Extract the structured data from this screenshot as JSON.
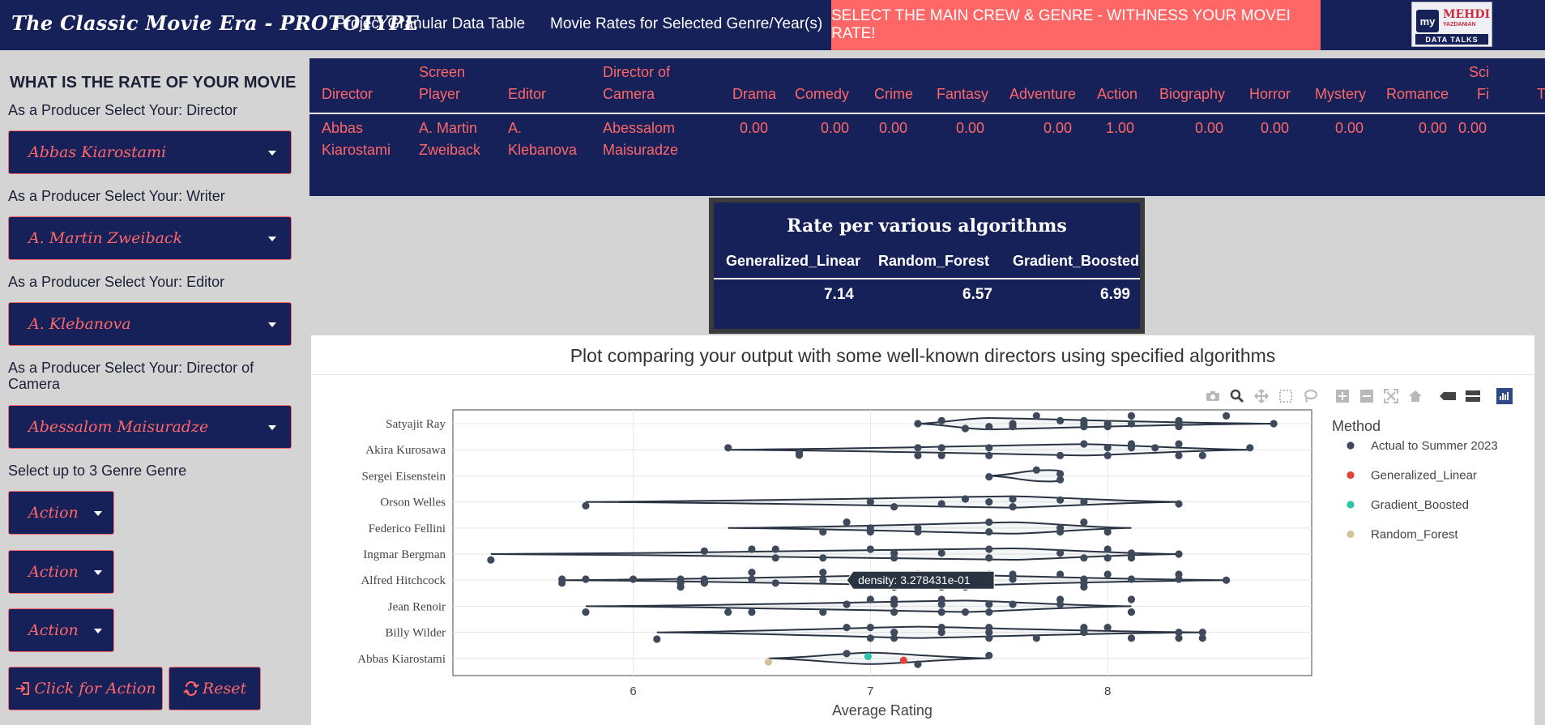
{
  "navbar": {
    "brand": "The Classic Movie Era - PROTOTYPE",
    "links": [
      "Project Granular Data Table",
      "Movie Rates for Selected Genre/Year(s)"
    ],
    "highlight": "SELECT THE MAIN CREW & GENRE - WITHNESS YOUR MOVEI RATE!",
    "logo": {
      "mark": "my",
      "name1": "MEHDI",
      "name2": "YAZDANIAN",
      "sub": "DATA TALKS"
    }
  },
  "sidebar": {
    "title": "WHAT IS THE RATE OF YOUR MOVIE",
    "director_label": "As a Producer Select Your: Director",
    "director_value": "Abbas Kiarostami",
    "writer_label": "As a Producer Select Your: Writer",
    "writer_value": "A. Martin Zweiback",
    "editor_label": "As a Producer Select Your: Editor",
    "editor_value": "A. Klebanova",
    "camera_label_1": "As a Producer Select Your: Director of",
    "camera_label_2": "Camera",
    "camera_value": "Abessalom Maisuradze",
    "genre_label": "Select up to 3 Genre Genre",
    "genres": [
      "Action",
      "Action",
      "Action"
    ],
    "action_button": "Click for Action",
    "reset_button": "Reset"
  },
  "crew_table": {
    "headers": {
      "director": "Director",
      "screen_1": "Screen",
      "screen_2": "Player",
      "editor": "Editor",
      "camera_1": "Director of",
      "camera_2": "Camera",
      "drama": "Drama",
      "comedy": "Comedy",
      "crime": "Crime",
      "fantasy": "Fantasy",
      "adventure": "Adventure",
      "action": "Action",
      "biography": "Biography",
      "horror": "Horror",
      "mystery": "Mystery",
      "romance": "Romance",
      "scifi_1": "Sci",
      "scifi_2": "Fi",
      "cut": "T"
    },
    "row": {
      "director_1": "Abbas",
      "director_2": "Kiarostami",
      "screen_1": "A. Martin",
      "screen_2": "Zweiback",
      "editor_1": "A.",
      "editor_2": "Klebanova",
      "camera_1": "Abessalom",
      "camera_2": "Maisuradze",
      "drama": "0.00",
      "comedy": "0.00",
      "crime": "0.00",
      "fantasy": "0.00",
      "adventure": "0.00",
      "action": "1.00",
      "biography": "0.00",
      "horror": "0.00",
      "mystery": "0.00",
      "romance": "0.00",
      "scifi": "0.00"
    }
  },
  "rate_table": {
    "title": "Rate per various algorithms",
    "headers": [
      "Generalized_Linear",
      "Random_Forest",
      "Gradient_Boosted"
    ],
    "values": [
      "7.14",
      "6.57",
      "6.99"
    ]
  },
  "chart_data": {
    "type": "scatter",
    "title": "Plot comparing your output with some well-known directors using specified algorithms",
    "xlabel": "Average Rating",
    "ylabel": "",
    "xlim": [
      5.24,
      8.86
    ],
    "x_ticks": [
      "6",
      "7",
      "8"
    ],
    "categories": [
      "Satyajit Ray",
      "Akira Kurosawa",
      "Sergei Eisenstein",
      "Orson Welles",
      "Federico Fellini",
      "Ingmar Bergman",
      "Alfred Hitchcock",
      "Jean Renoir",
      "Billy Wilder",
      "Abbas Kiarostami"
    ],
    "legend_title": "Method",
    "legend_position": "right",
    "series": [
      {
        "name": "Actual to Summer 2023",
        "color": "#3e4a5c",
        "points": [
          [
            "Satyajit Ray",
            7.7,
            0.4
          ],
          [
            "Satyajit Ray",
            8.1,
            0.4
          ],
          [
            "Satyajit Ray",
            8.5,
            0.4
          ],
          [
            "Satyajit Ray",
            7.3,
            0.15
          ],
          [
            "Satyajit Ray",
            7.8,
            0.15
          ],
          [
            "Satyajit Ray",
            7.9,
            0.15
          ],
          [
            "Satyajit Ray",
            8.3,
            0.15
          ],
          [
            "Satyajit Ray",
            8.7,
            0.0
          ],
          [
            "Satyajit Ray",
            7.2,
            0.0
          ],
          [
            "Satyajit Ray",
            7.6,
            0.0
          ],
          [
            "Satyajit Ray",
            7.9,
            0.0
          ],
          [
            "Satyajit Ray",
            8.0,
            0.0
          ],
          [
            "Satyajit Ray",
            8.1,
            0.0
          ],
          [
            "Satyajit Ray",
            8.3,
            0.0
          ],
          [
            "Satyajit Ray",
            7.5,
            -0.15
          ],
          [
            "Satyajit Ray",
            7.6,
            -0.15
          ],
          [
            "Satyajit Ray",
            7.9,
            -0.15
          ],
          [
            "Satyajit Ray",
            8.0,
            -0.15
          ],
          [
            "Satyajit Ray",
            8.3,
            -0.15
          ],
          [
            "Satyajit Ray",
            7.4,
            -0.25
          ],
          [
            "Akira Kurosawa",
            7.9,
            0.3
          ],
          [
            "Akira Kurosawa",
            8.1,
            0.3
          ],
          [
            "Akira Kurosawa",
            8.3,
            0.3
          ],
          [
            "Akira Kurosawa",
            6.4,
            0.1
          ],
          [
            "Akira Kurosawa",
            7.2,
            0.1
          ],
          [
            "Akira Kurosawa",
            7.3,
            0.1
          ],
          [
            "Akira Kurosawa",
            7.5,
            0.1
          ],
          [
            "Akira Kurosawa",
            8.0,
            0.1
          ],
          [
            "Akira Kurosawa",
            8.1,
            0.1
          ],
          [
            "Akira Kurosawa",
            8.2,
            0.1
          ],
          [
            "Akira Kurosawa",
            8.6,
            0.1
          ],
          [
            "Akira Kurosawa",
            6.7,
            -0.15
          ],
          [
            "Akira Kurosawa",
            6.7,
            -0.28
          ],
          [
            "Akira Kurosawa",
            7.2,
            -0.3
          ],
          [
            "Akira Kurosawa",
            7.3,
            -0.3
          ],
          [
            "Akira Kurosawa",
            7.5,
            -0.3
          ],
          [
            "Akira Kurosawa",
            7.8,
            -0.3
          ],
          [
            "Akira Kurosawa",
            8.0,
            -0.3
          ],
          [
            "Akira Kurosawa",
            8.3,
            -0.3
          ],
          [
            "Akira Kurosawa",
            8.4,
            -0.3
          ],
          [
            "Sergei Eisenstein",
            7.7,
            0.3
          ],
          [
            "Sergei Eisenstein",
            7.8,
            0.1
          ],
          [
            "Sergei Eisenstein",
            7.5,
            -0.05
          ],
          [
            "Sergei Eisenstein",
            7.8,
            -0.2
          ],
          [
            "Orson Welles",
            7.4,
            0.15
          ],
          [
            "Orson Welles",
            7.6,
            0.15
          ],
          [
            "Orson Welles",
            7.8,
            0.1
          ],
          [
            "Orson Welles",
            7.0,
            0.0
          ],
          [
            "Orson Welles",
            7.5,
            0.0
          ],
          [
            "Orson Welles",
            7.9,
            0.0
          ],
          [
            "Orson Welles",
            7.3,
            -0.1
          ],
          [
            "Orson Welles",
            7.6,
            -0.25
          ],
          [
            "Orson Welles",
            8.3,
            -0.1
          ],
          [
            "Orson Welles",
            5.8,
            -0.2
          ],
          [
            "Orson Welles",
            7.1,
            -0.25
          ],
          [
            "Federico Fellini",
            6.9,
            0.3
          ],
          [
            "Federico Fellini",
            7.5,
            0.3
          ],
          [
            "Federico Fellini",
            7.9,
            0.3
          ],
          [
            "Federico Fellini",
            7.0,
            0.0
          ],
          [
            "Federico Fellini",
            7.2,
            0.0
          ],
          [
            "Federico Fellini",
            7.8,
            0.0
          ],
          [
            "Federico Fellini",
            6.8,
            -0.2
          ],
          [
            "Federico Fellini",
            7.0,
            -0.2
          ],
          [
            "Federico Fellini",
            7.2,
            -0.2
          ],
          [
            "Federico Fellini",
            7.5,
            -0.2
          ],
          [
            "Federico Fellini",
            7.8,
            -0.2
          ],
          [
            "Federico Fellini",
            8.0,
            -0.2
          ],
          [
            "Ingmar Bergman",
            6.5,
            0.25
          ],
          [
            "Ingmar Bergman",
            6.6,
            0.25
          ],
          [
            "Ingmar Bergman",
            7.0,
            0.25
          ],
          [
            "Ingmar Bergman",
            7.5,
            0.25
          ],
          [
            "Ingmar Bergman",
            8.0,
            0.25
          ],
          [
            "Ingmar Bergman",
            6.3,
            0.15
          ],
          [
            "Ingmar Bergman",
            7.1,
            0.05
          ],
          [
            "Ingmar Bergman",
            7.3,
            0.05
          ],
          [
            "Ingmar Bergman",
            7.8,
            0.05
          ],
          [
            "Ingmar Bergman",
            8.1,
            0.05
          ],
          [
            "Ingmar Bergman",
            8.3,
            0.0
          ],
          [
            "Ingmar Bergman",
            5.4,
            -0.3
          ],
          [
            "Ingmar Bergman",
            6.6,
            -0.2
          ],
          [
            "Ingmar Bergman",
            6.8,
            -0.2
          ],
          [
            "Ingmar Bergman",
            7.1,
            -0.2
          ],
          [
            "Ingmar Bergman",
            7.5,
            -0.2
          ],
          [
            "Ingmar Bergman",
            7.9,
            -0.2
          ],
          [
            "Ingmar Bergman",
            8.0,
            -0.2
          ],
          [
            "Ingmar Bergman",
            8.1,
            -0.2
          ],
          [
            "Alfred Hitchcock",
            6.5,
            0.4
          ],
          [
            "Alfred Hitchcock",
            6.8,
            0.4
          ],
          [
            "Alfred Hitchcock",
            7.2,
            0.3
          ],
          [
            "Alfred Hitchcock",
            7.5,
            0.3
          ],
          [
            "Alfred Hitchcock",
            7.6,
            0.3
          ],
          [
            "Alfred Hitchcock",
            7.8,
            0.3
          ],
          [
            "Alfred Hitchcock",
            8.0,
            0.3
          ],
          [
            "Alfred Hitchcock",
            8.3,
            0.3
          ],
          [
            "Alfred Hitchcock",
            5.7,
            0.05
          ],
          [
            "Alfred Hitchcock",
            5.8,
            0.05
          ],
          [
            "Alfred Hitchcock",
            6.0,
            0.05
          ],
          [
            "Alfred Hitchcock",
            6.2,
            0.05
          ],
          [
            "Alfred Hitchcock",
            6.3,
            0.05
          ],
          [
            "Alfred Hitchcock",
            6.5,
            0.05
          ],
          [
            "Alfred Hitchcock",
            6.8,
            0.0
          ],
          [
            "Alfred Hitchcock",
            7.5,
            0.05
          ],
          [
            "Alfred Hitchcock",
            7.6,
            0.05
          ],
          [
            "Alfred Hitchcock",
            7.9,
            0.05
          ],
          [
            "Alfred Hitchcock",
            8.1,
            0.05
          ],
          [
            "Alfred Hitchcock",
            8.3,
            0.05
          ],
          [
            "Alfred Hitchcock",
            8.5,
            0.0
          ],
          [
            "Alfred Hitchcock",
            5.7,
            -0.15
          ],
          [
            "Alfred Hitchcock",
            6.2,
            -0.15
          ],
          [
            "Alfred Hitchcock",
            6.3,
            -0.15
          ],
          [
            "Alfred Hitchcock",
            6.6,
            -0.15
          ],
          [
            "Alfred Hitchcock",
            7.5,
            -0.15
          ],
          [
            "Alfred Hitchcock",
            7.9,
            -0.15
          ],
          [
            "Alfred Hitchcock",
            6.2,
            -0.35
          ],
          [
            "Alfred Hitchcock",
            7.1,
            -0.35
          ],
          [
            "Alfred Hitchcock",
            7.3,
            -0.35
          ],
          [
            "Alfred Hitchcock",
            7.4,
            -0.35
          ],
          [
            "Alfred Hitchcock",
            7.9,
            -0.35
          ],
          [
            "Jean Renoir",
            7.0,
            0.35
          ],
          [
            "Jean Renoir",
            7.1,
            0.35
          ],
          [
            "Jean Renoir",
            7.3,
            0.35
          ],
          [
            "Jean Renoir",
            7.8,
            0.35
          ],
          [
            "Jean Renoir",
            8.1,
            0.35
          ],
          [
            "Jean Renoir",
            6.9,
            0.1
          ],
          [
            "Jean Renoir",
            7.1,
            0.1
          ],
          [
            "Jean Renoir",
            7.3,
            0.1
          ],
          [
            "Jean Renoir",
            7.5,
            0.1
          ],
          [
            "Jean Renoir",
            7.6,
            0.1
          ],
          [
            "Jean Renoir",
            7.8,
            0.1
          ],
          [
            "Jean Renoir",
            5.8,
            -0.3
          ],
          [
            "Jean Renoir",
            6.4,
            -0.3
          ],
          [
            "Jean Renoir",
            6.5,
            -0.3
          ],
          [
            "Jean Renoir",
            6.8,
            -0.3
          ],
          [
            "Jean Renoir",
            7.1,
            -0.3
          ],
          [
            "Jean Renoir",
            7.3,
            -0.3
          ],
          [
            "Jean Renoir",
            7.4,
            -0.3
          ],
          [
            "Jean Renoir",
            7.5,
            -0.3
          ],
          [
            "Jean Renoir",
            8.1,
            -0.3
          ],
          [
            "Billy Wilder",
            6.9,
            0.25
          ],
          [
            "Billy Wilder",
            7.0,
            0.25
          ],
          [
            "Billy Wilder",
            7.3,
            0.25
          ],
          [
            "Billy Wilder",
            7.5,
            0.25
          ],
          [
            "Billy Wilder",
            7.9,
            0.25
          ],
          [
            "Billy Wilder",
            8.0,
            0.25
          ],
          [
            "Billy Wilder",
            7.1,
            0.0
          ],
          [
            "Billy Wilder",
            7.3,
            0.0
          ],
          [
            "Billy Wilder",
            7.5,
            0.0
          ],
          [
            "Billy Wilder",
            7.9,
            0.0
          ],
          [
            "Billy Wilder",
            8.3,
            0.0
          ],
          [
            "Billy Wilder",
            8.4,
            0.0
          ],
          [
            "Billy Wilder",
            6.1,
            -0.35
          ],
          [
            "Billy Wilder",
            7.0,
            -0.3
          ],
          [
            "Billy Wilder",
            7.1,
            -0.3
          ],
          [
            "Billy Wilder",
            7.5,
            -0.3
          ],
          [
            "Billy Wilder",
            7.7,
            -0.3
          ],
          [
            "Billy Wilder",
            8.1,
            -0.3
          ],
          [
            "Billy Wilder",
            8.3,
            -0.3
          ],
          [
            "Billy Wilder",
            8.4,
            -0.3
          ],
          [
            "Abbas Kiarostami",
            6.9,
            0.25
          ],
          [
            "Abbas Kiarostami",
            7.5,
            0.15
          ],
          [
            "Abbas Kiarostami",
            7.2,
            -0.3
          ]
        ]
      },
      {
        "name": "Generalized_Linear",
        "color": "#e4433d",
        "points": [
          [
            "Abbas Kiarostami",
            7.14,
            -0.1
          ]
        ]
      },
      {
        "name": "Gradient_Boosted",
        "color": "#2ec4aa",
        "points": [
          [
            "Abbas Kiarostami",
            6.99,
            0.1
          ]
        ]
      },
      {
        "name": "Random_Forest",
        "color": "#d4c49e",
        "points": [
          [
            "Abbas Kiarostami",
            6.57,
            -0.18
          ]
        ]
      }
    ],
    "violins": [
      {
        "category": "Satyajit Ray",
        "range": [
          7.2,
          8.7
        ],
        "peak": 7.5
      },
      {
        "category": "Akira Kurosawa",
        "range": [
          6.4,
          8.6
        ],
        "peak": 7.9
      },
      {
        "category": "Sergei Eisenstein",
        "range": [
          7.5,
          7.8
        ],
        "peak": 7.75
      },
      {
        "category": "Orson Welles",
        "range": [
          5.8,
          8.3
        ],
        "peak": 7.6
      },
      {
        "category": "Federico Fellini",
        "range": [
          6.4,
          8.1
        ],
        "peak": 7.6
      },
      {
        "category": "Ingmar Bergman",
        "range": [
          5.4,
          8.3
        ],
        "peak": 7.6
      },
      {
        "category": "Alfred Hitchcock",
        "range": [
          5.7,
          8.5
        ],
        "peak": 7.3
      },
      {
        "category": "Jean Renoir",
        "range": [
          5.8,
          8.1
        ],
        "peak": 7.4
      },
      {
        "category": "Billy Wilder",
        "range": [
          6.1,
          8.4
        ],
        "peak": 7.2
      },
      {
        "category": "Abbas Kiarostami",
        "range": [
          6.57,
          7.5
        ],
        "peak": 7.0
      }
    ],
    "hover": {
      "category": "Alfred Hitchcock",
      "x": 6.9,
      "text": "density: 3.278431e-01"
    }
  },
  "modebar_icons": [
    "camera-icon",
    "zoom-icon",
    "pan-icon",
    "box-select-icon",
    "lasso-icon",
    "zoom-in-icon",
    "zoom-out-icon",
    "autoscale-icon",
    "reset-axes-icon",
    "spike-lines-icon",
    "hover-closest-icon",
    "hover-compare-icon",
    "plotly-logo-icon"
  ],
  "colors": {
    "navy": "#162059",
    "accent": "#ff6767",
    "sidebar": "#d4d4d4"
  }
}
